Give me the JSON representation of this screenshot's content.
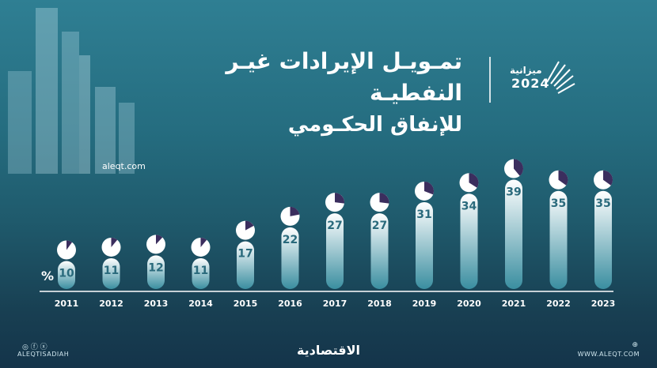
{
  "header": {
    "title_line1": "تمـويـل الإيرادات غيـر النفطيـة",
    "title_line2": "للإنفاق الحكـومي"
  },
  "logo": {
    "name": "ميزانية",
    "year": "2024",
    "icon": "budget-logo"
  },
  "site": "aleqt.com",
  "unit": "%",
  "footer": {
    "brand": "الاقتصادية",
    "left_handle": "ALEQTISADIAH",
    "right_url": "WWW.ALEQT.COM",
    "social_icons": [
      "instagram-icon",
      "facebook-icon",
      "x-icon"
    ],
    "web_icon": "globe-icon"
  },
  "colors": {
    "background_top": "#2f7f93",
    "background_bottom": "#14344a",
    "bar_top": "#ffffff",
    "bar_bottom": "#3a8ea0",
    "pie_fill": "#ffffff",
    "pie_slice": "#3b2e5e",
    "label": "#2a6a7c"
  },
  "chart_data": {
    "type": "bar",
    "categories": [
      "2011",
      "2012",
      "2013",
      "2014",
      "2015",
      "2016",
      "2017",
      "2018",
      "2019",
      "2020",
      "2021",
      "2022",
      "2023"
    ],
    "values": [
      10,
      11,
      12,
      11,
      17,
      22,
      27,
      27,
      31,
      34,
      39,
      35,
      35
    ],
    "ylim": [
      0,
      40
    ],
    "ylabel": "%",
    "grid": false
  }
}
